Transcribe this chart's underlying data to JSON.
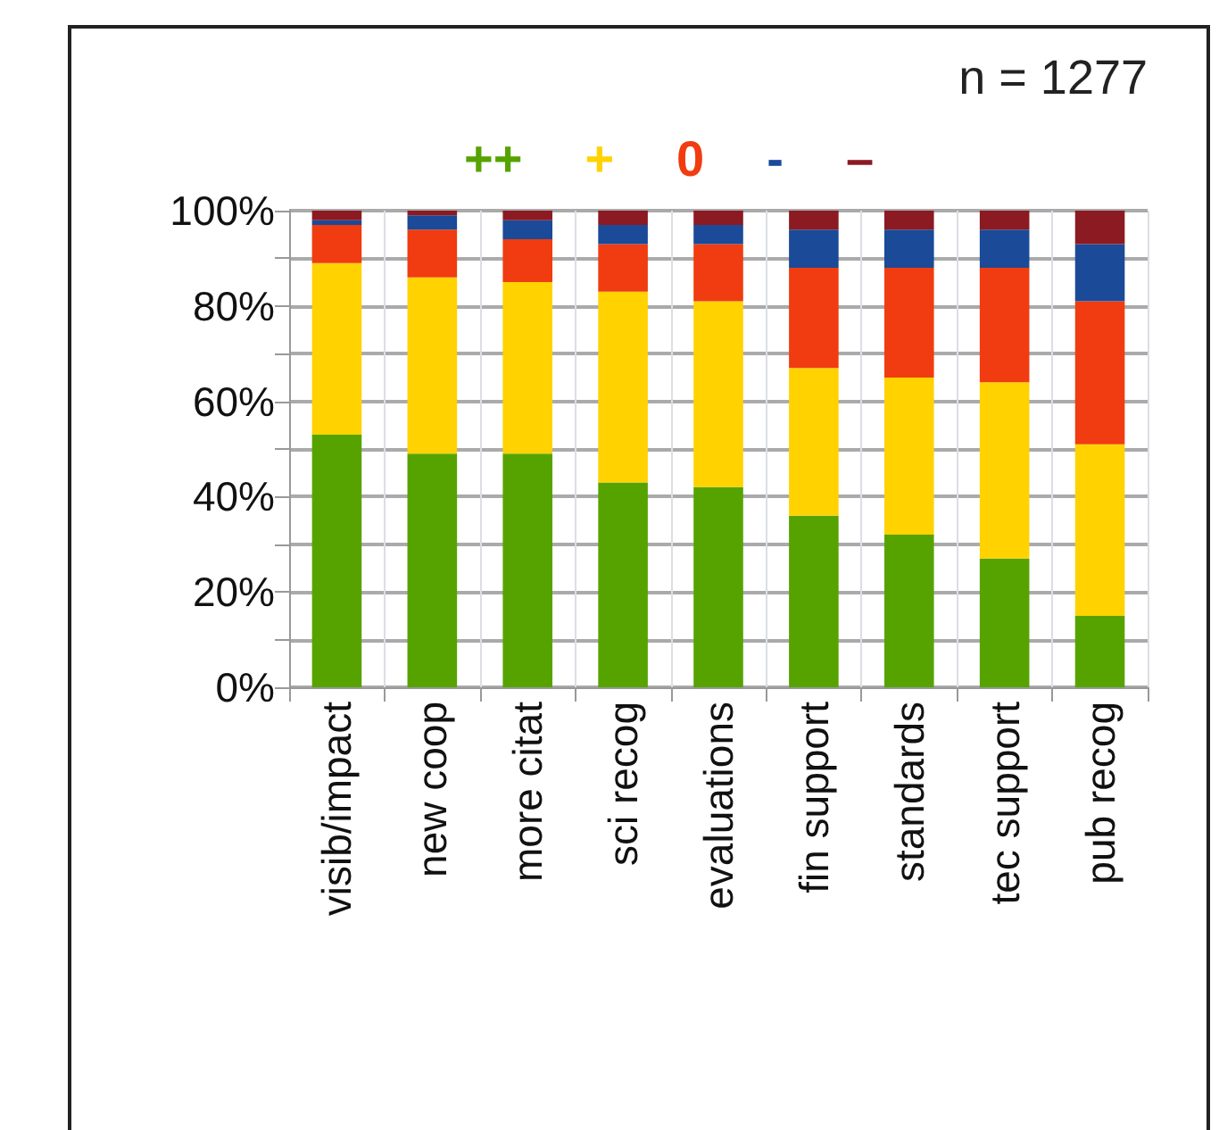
{
  "chart_data": {
    "type": "bar",
    "stacked": true,
    "categories": [
      "visib/impact",
      "new coop",
      "more citat",
      "sci recog",
      "evaluations",
      "fin support",
      "standards",
      "tec support",
      "pub recog"
    ],
    "series": [
      {
        "name": "++",
        "color": "#56a300",
        "values": [
          53,
          49,
          49,
          43,
          42,
          36,
          32,
          27,
          15
        ]
      },
      {
        "name": "+",
        "color": "#ffd200",
        "values": [
          36,
          37,
          36,
          40,
          39,
          31,
          33,
          37,
          36
        ]
      },
      {
        "name": "0",
        "color": "#f03c10",
        "values": [
          8,
          10,
          9,
          10,
          12,
          21,
          23,
          24,
          30
        ]
      },
      {
        "name": "-",
        "color": "#1a4a98",
        "values": [
          1,
          3,
          4,
          4,
          4,
          8,
          8,
          8,
          12
        ]
      },
      {
        "name": "–",
        "color": "#8c1a22",
        "values": [
          2,
          1,
          2,
          3,
          3,
          4,
          4,
          4,
          7
        ]
      }
    ],
    "ylim": [
      0,
      100
    ],
    "yticks": [
      {
        "value": 0,
        "label": "0%"
      },
      {
        "value": 10,
        "label": null
      },
      {
        "value": 20,
        "label": "20%"
      },
      {
        "value": 30,
        "label": null
      },
      {
        "value": 40,
        "label": "40%"
      },
      {
        "value": 50,
        "label": null
      },
      {
        "value": 60,
        "label": "60%"
      },
      {
        "value": 70,
        "label": null
      },
      {
        "value": 80,
        "label": "80%"
      },
      {
        "value": 90,
        "label": null
      },
      {
        "value": 100,
        "label": "100%"
      }
    ],
    "grid": true,
    "legend": "top",
    "annotations": [
      "n = 1277"
    ]
  }
}
